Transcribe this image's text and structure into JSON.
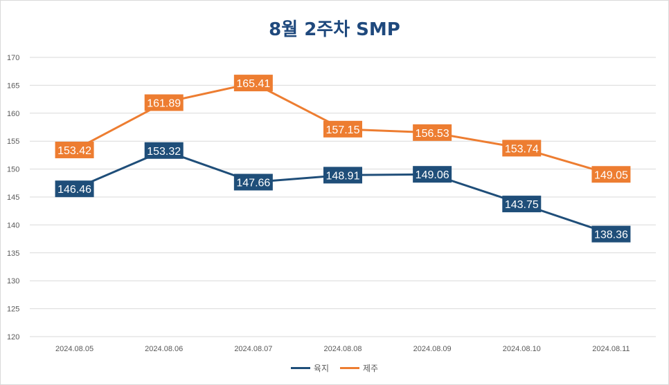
{
  "chart_data": {
    "type": "line",
    "title": "8월 2주차 SMP",
    "categories": [
      "2024.08.05",
      "2024.08.06",
      "2024.08.07",
      "2024.08.08",
      "2024.08.09",
      "2024.08.10",
      "2024.08.11"
    ],
    "ylim": [
      120,
      170
    ],
    "yticks": [
      120,
      125,
      130,
      135,
      140,
      145,
      150,
      155,
      160,
      165,
      170
    ],
    "grid": true,
    "legend_position": "bottom",
    "series": [
      {
        "name": "육지",
        "color": "#1f4e79",
        "values": [
          146.46,
          153.32,
          147.66,
          148.91,
          149.06,
          143.75,
          138.36
        ]
      },
      {
        "name": "제주",
        "color": "#ed7d31",
        "values": [
          153.42,
          161.89,
          165.41,
          157.15,
          156.53,
          153.74,
          149.05
        ]
      }
    ]
  }
}
